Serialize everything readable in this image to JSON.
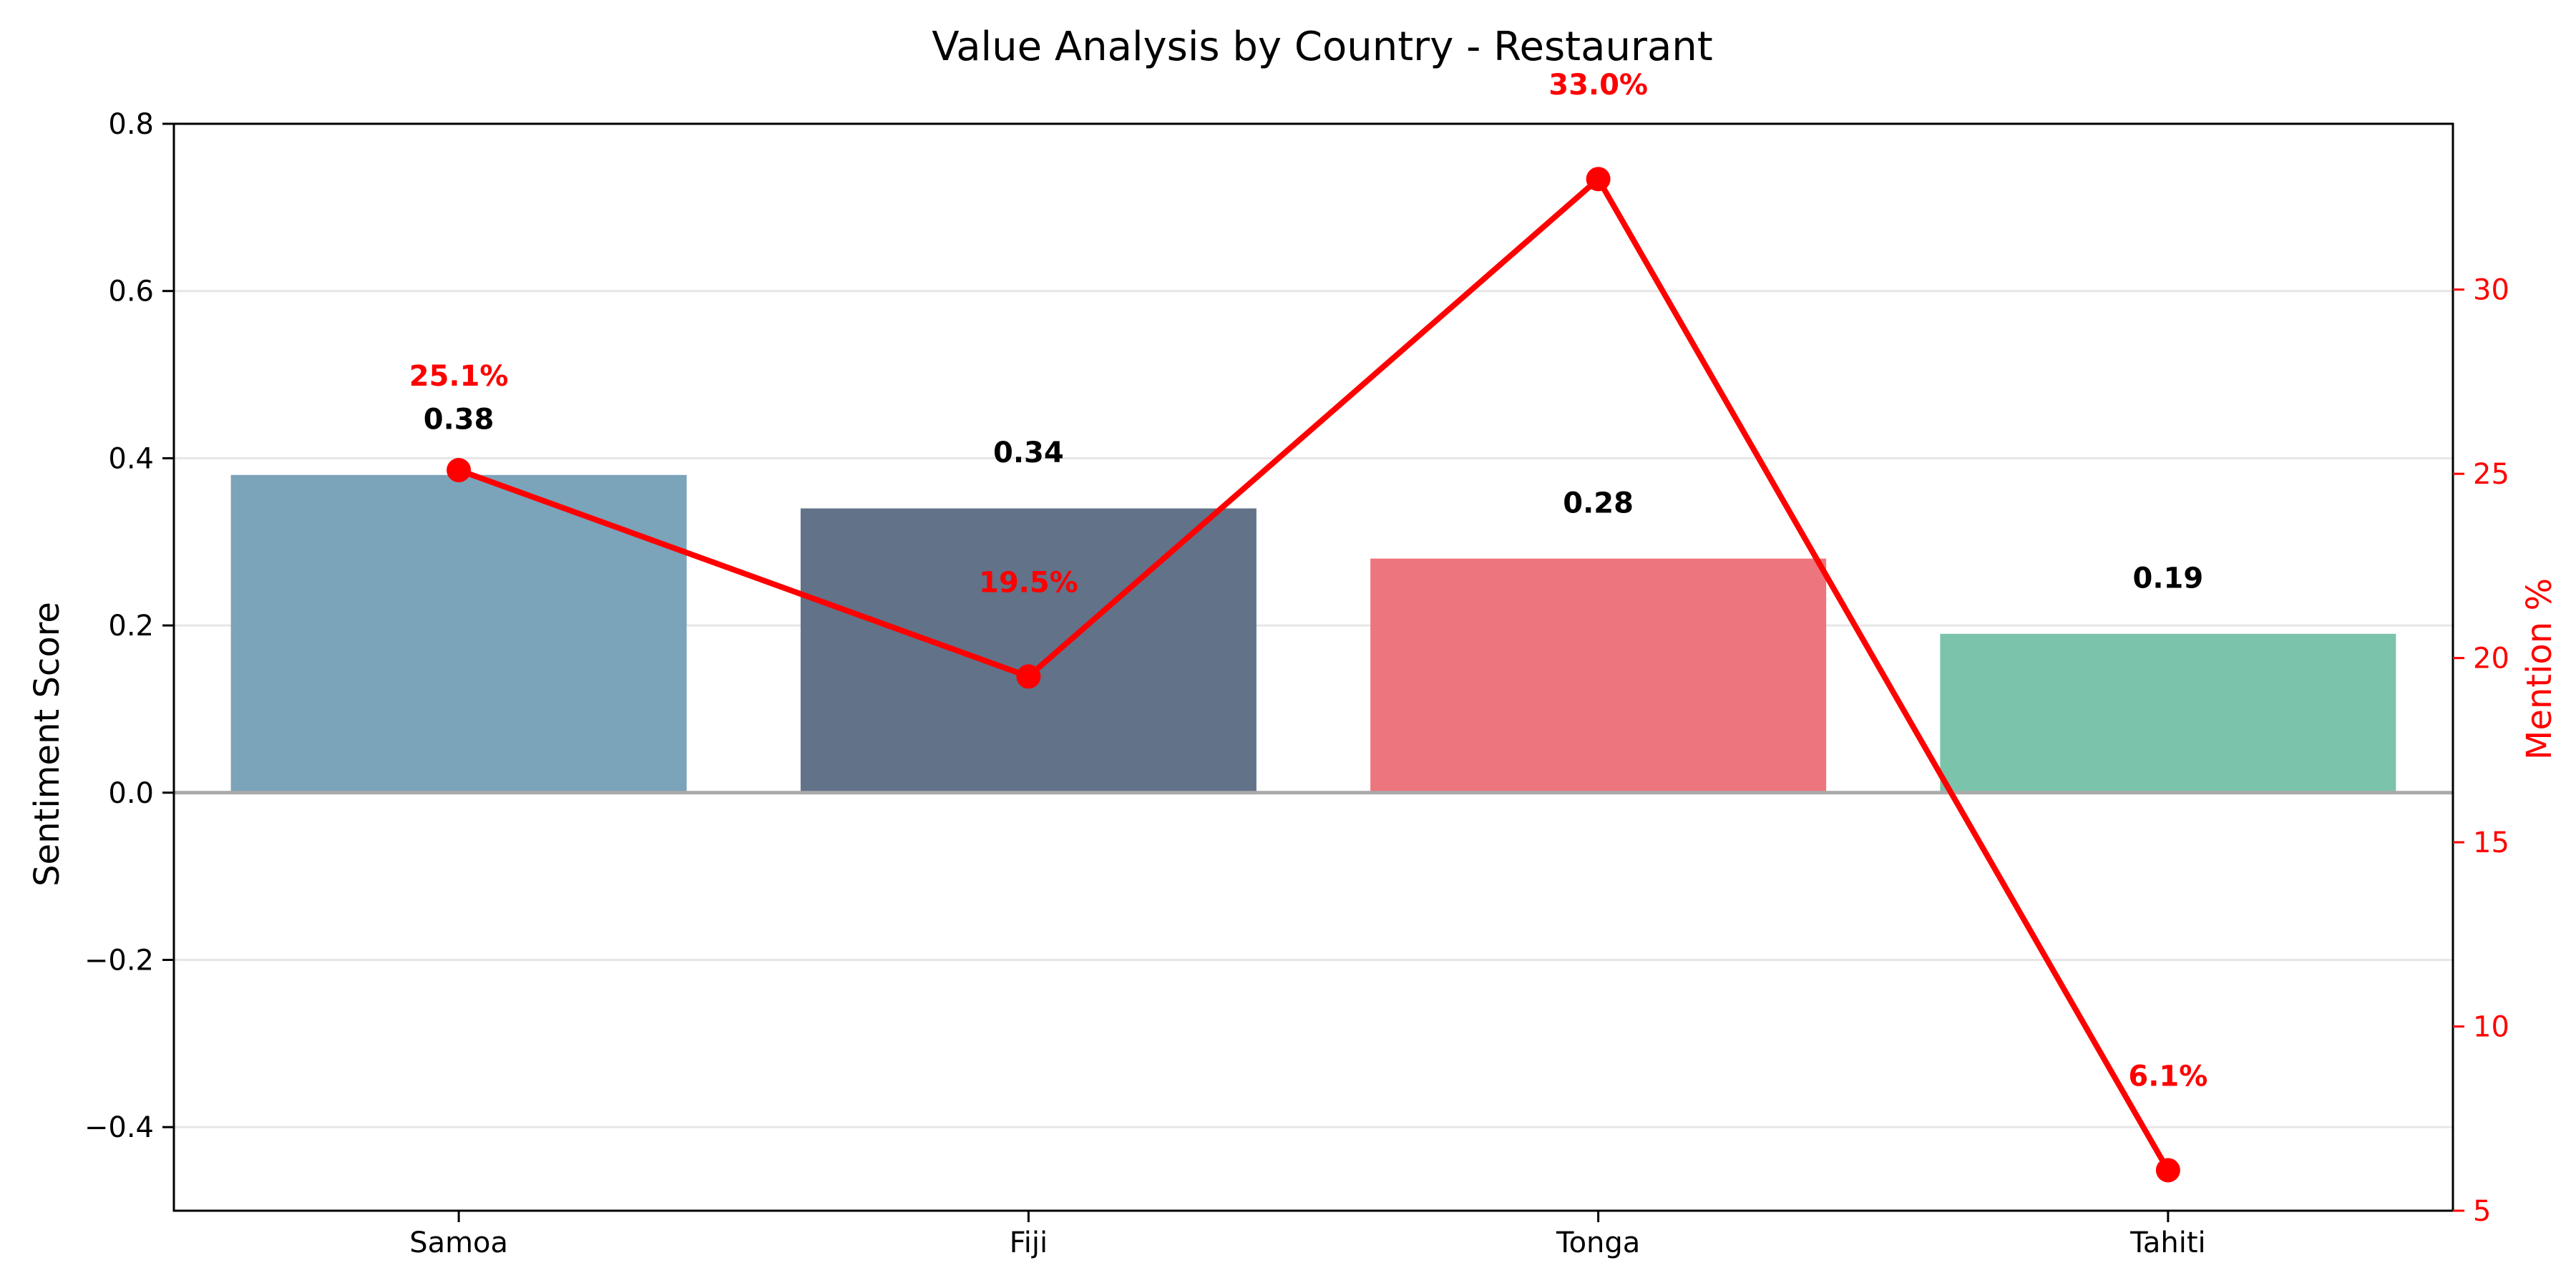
{
  "chart_data": {
    "type": "bar",
    "title": "Value Analysis by Country - Restaurant",
    "xlabel": "",
    "ylabel": "Sentiment Score",
    "y2label": "Mention %",
    "categories": [
      "Samoa",
      "Fiji",
      "Tonga",
      "Tahiti"
    ],
    "ylim": [
      -0.5,
      0.8
    ],
    "y2lim": [
      5,
      34.5
    ],
    "yticks": [
      -0.4,
      -0.2,
      0.0,
      0.2,
      0.4,
      0.6,
      0.8
    ],
    "ytick_labels": [
      "−0.4",
      "−0.2",
      "0.0",
      "0.2",
      "0.4",
      "0.6",
      "0.8"
    ],
    "y2ticks": [
      5,
      10,
      15,
      20,
      25,
      30
    ],
    "y2tick_labels": [
      "5",
      "10",
      "15",
      "20",
      "25",
      "30"
    ],
    "grid": true,
    "series": [
      {
        "kind": "bar",
        "axis": "left",
        "values": [
          0.38,
          0.34,
          0.28,
          0.19
        ],
        "labels": [
          "0.38",
          "0.34",
          "0.28",
          "0.19"
        ],
        "colors": [
          "#7ba3ba",
          "#627289",
          "#ed757d",
          "#7cc3ac"
        ]
      },
      {
        "kind": "line",
        "axis": "right",
        "values": [
          25.1,
          19.5,
          33.0,
          6.1
        ],
        "labels": [
          "25.1%",
          "19.5%",
          "33.0%",
          "6.1%"
        ],
        "color": "#ff0000"
      }
    ]
  }
}
